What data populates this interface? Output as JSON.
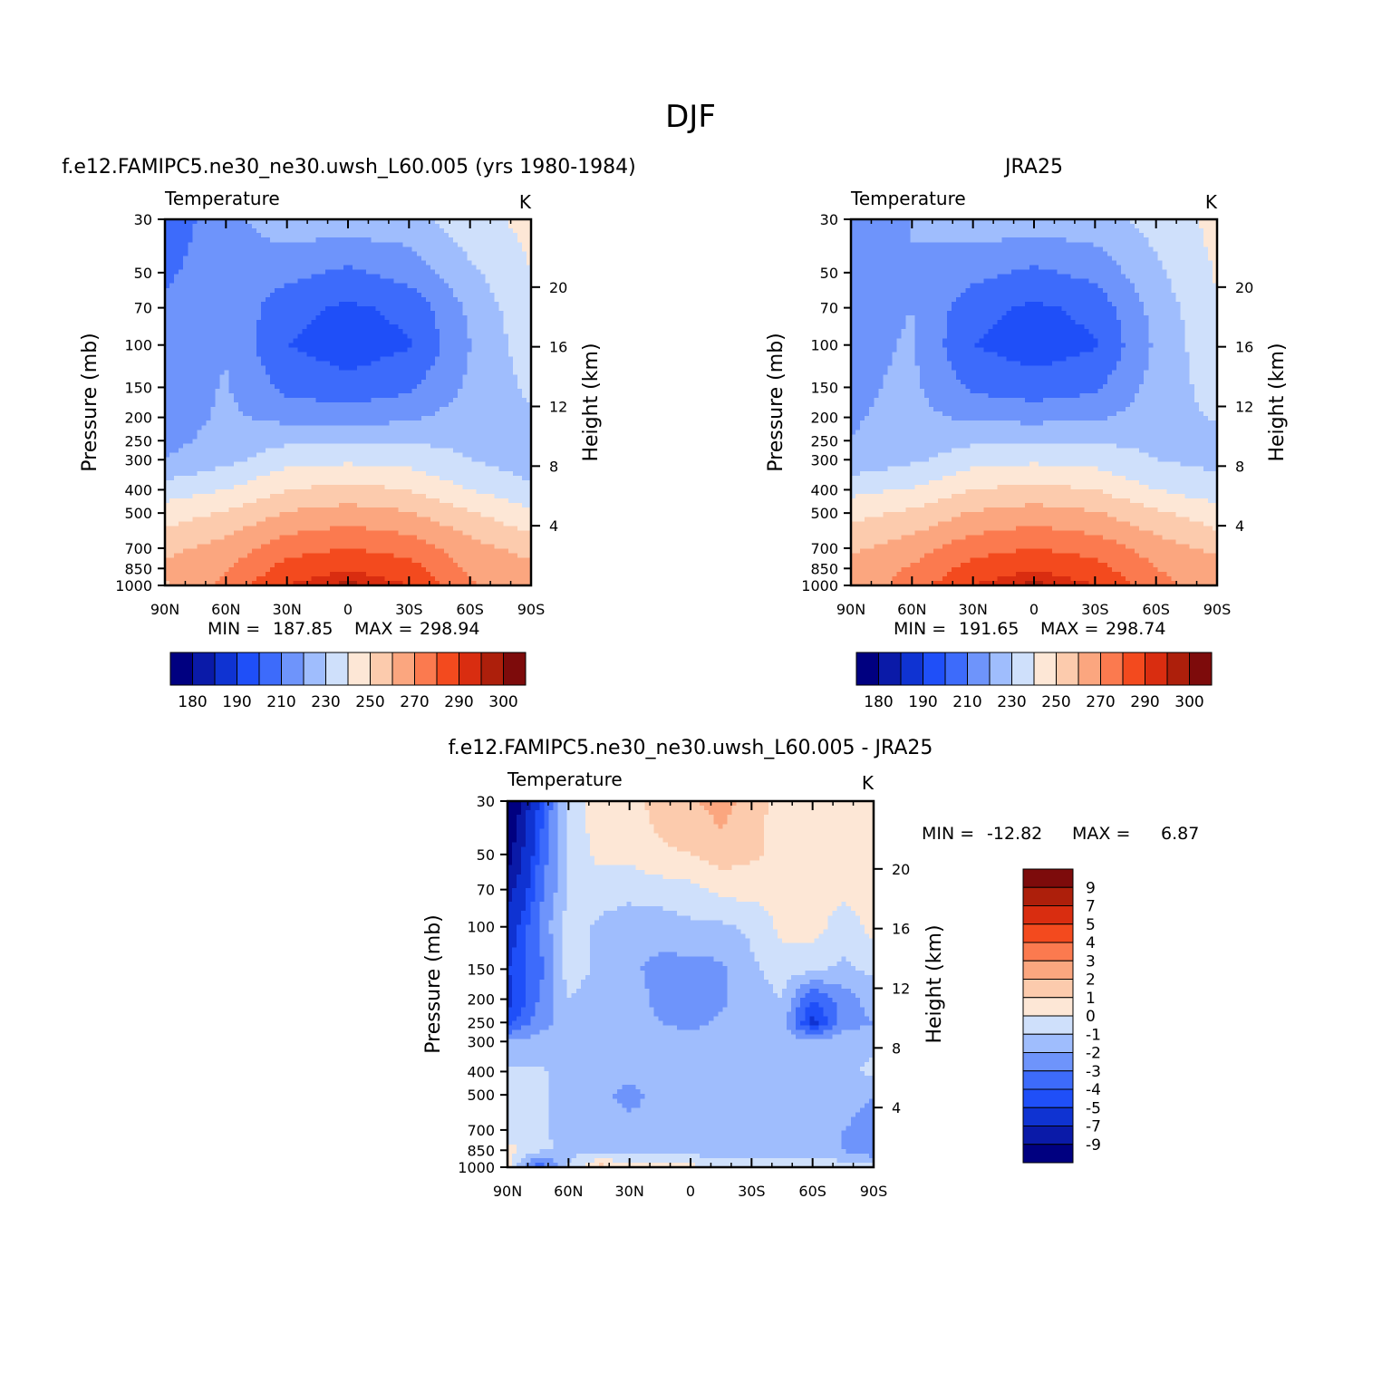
{
  "figure": {
    "title": "DJF"
  },
  "colors": {
    "abs_fill": [
      "#000080",
      "#0a1aa8",
      "#0f33d2",
      "#1f4ff8",
      "#3d6bfb",
      "#6e94fb",
      "#9fbdfd",
      "#cfe0fb",
      "#fde7d6",
      "#fccbad",
      "#fba67f",
      "#fb7a4f",
      "#f34a1e",
      "#d92d10",
      "#ad1f0b",
      "#7d0b0b"
    ],
    "diff_fill": [
      "#000080",
      "#0a1aa8",
      "#0f33d2",
      "#1f4ff8",
      "#3d6bfb",
      "#6e94fb",
      "#9fbdfd",
      "#cfe0fb",
      "#fde7d6",
      "#fccbad",
      "#fba67f",
      "#fb7a4f",
      "#f34a1e",
      "#d92d10",
      "#ad1f0b",
      "#7d0b0b"
    ]
  },
  "chart_data": [
    {
      "type": "heatmap",
      "title": "f.e12.FAMIPC5.ne30_ne30.uwsh_L60.005 (yrs 1980-1984)",
      "variable": "Temperature",
      "units": "K",
      "ylabel": "Pressure (mb)",
      "y2label": "Height (km)",
      "x_ticks": [
        "90N",
        "60N",
        "30N",
        "0",
        "30S",
        "60S",
        "90S"
      ],
      "y_ticks": [
        "30",
        "50",
        "70",
        "100",
        "150",
        "200",
        "250",
        "300",
        "400",
        "500",
        "700",
        "850",
        "1000"
      ],
      "y2_ticks": [
        "20",
        "16",
        "12",
        "8",
        "4"
      ],
      "min_label": "MIN =",
      "min": "187.85",
      "max_label": "MAX =",
      "max": "298.94",
      "colorbar_labels": [
        "180",
        "190",
        "210",
        "230",
        "250",
        "270",
        "290",
        "300"
      ],
      "contour_levels": [
        180,
        185,
        190,
        200,
        210,
        220,
        230,
        240,
        250,
        260,
        270,
        280,
        290,
        295,
        300
      ],
      "pressure_levels": [
        30,
        50,
        70,
        100,
        150,
        200,
        250,
        300,
        400,
        500,
        700,
        850,
        1000
      ],
      "latitudes": [
        90,
        60,
        30,
        0,
        -30,
        -60,
        -90
      ],
      "values": [
        [
          203,
          217,
          226,
          226,
          226,
          236,
          243
        ],
        [
          208,
          217,
          213,
          208,
          214,
          228,
          240
        ],
        [
          212,
          218,
          204,
          198,
          203,
          222,
          238
        ],
        [
          212,
          219,
          200,
          195,
          199,
          220,
          236
        ],
        [
          213,
          221,
          207,
          203,
          208,
          222,
          232
        ],
        [
          214,
          222,
          217,
          216,
          218,
          225,
          228
        ],
        [
          217,
          224,
          228,
          228,
          229,
          228,
          223
        ],
        [
          220,
          227,
          236,
          238,
          236,
          230,
          225
        ],
        [
          235,
          240,
          250,
          253,
          250,
          240,
          232
        ],
        [
          245,
          251,
          261,
          264,
          261,
          251,
          242
        ],
        [
          257,
          264,
          276,
          280,
          276,
          264,
          256
        ],
        [
          262,
          269,
          284,
          289,
          284,
          268,
          263
        ],
        [
          258,
          273,
          290,
          297,
          290,
          272,
          260
        ]
      ]
    },
    {
      "type": "heatmap",
      "title": "JRA25",
      "variable": "Temperature",
      "units": "K",
      "ylabel": "Pressure (mb)",
      "y2label": "Height (km)",
      "x_ticks": [
        "90N",
        "60N",
        "30N",
        "0",
        "30S",
        "60S",
        "90S"
      ],
      "y_ticks": [
        "30",
        "50",
        "70",
        "100",
        "150",
        "200",
        "250",
        "300",
        "400",
        "500",
        "700",
        "850",
        "1000"
      ],
      "y2_ticks": [
        "20",
        "16",
        "12",
        "8",
        "4"
      ],
      "min_label": "MIN =",
      "min": "191.65",
      "max_label": "MAX =",
      "max": "298.74",
      "colorbar_labels": [
        "180",
        "190",
        "210",
        "230",
        "250",
        "270",
        "290",
        "300"
      ],
      "contour_levels": [
        180,
        185,
        190,
        200,
        210,
        220,
        230,
        240,
        250,
        260,
        270,
        280,
        290,
        295,
        300
      ],
      "pressure_levels": [
        30,
        50,
        70,
        100,
        150,
        200,
        250,
        300,
        400,
        500,
        700,
        850,
        1000
      ],
      "latitudes": [
        90,
        60,
        30,
        0,
        -30,
        -60,
        -90
      ],
      "values": [
        [
          214,
          220,
          226,
          226,
          226,
          234,
          243
        ],
        [
          216,
          220,
          213,
          208,
          213,
          228,
          241
        ],
        [
          216,
          220,
          204,
          198,
          203,
          224,
          239
        ],
        [
          217,
          221,
          200,
          195,
          199,
          222,
          238
        ],
        [
          218,
          222,
          208,
          204,
          208,
          224,
          234
        ],
        [
          219,
          223,
          218,
          217,
          218,
          226,
          231
        ],
        [
          220,
          225,
          228,
          229,
          229,
          228,
          227
        ],
        [
          223,
          228,
          236,
          238,
          236,
          230,
          227
        ],
        [
          237,
          241,
          250,
          253,
          250,
          240,
          234
        ],
        [
          247,
          252,
          261,
          264,
          261,
          252,
          244
        ],
        [
          258,
          265,
          276,
          280,
          276,
          265,
          257
        ],
        [
          264,
          271,
          284,
          289,
          284,
          270,
          265
        ],
        [
          261,
          275,
          290,
          297,
          290,
          274,
          263
        ]
      ]
    },
    {
      "type": "heatmap",
      "title": "f.e12.FAMIPC5.ne30_ne30.uwsh_L60.005 - JRA25",
      "variable": "Temperature",
      "units": "K",
      "ylabel": "Pressure (mb)",
      "y2label": "Height (km)",
      "x_ticks": [
        "90N",
        "60N",
        "30N",
        "0",
        "30S",
        "60S",
        "90S"
      ],
      "y_ticks": [
        "30",
        "50",
        "70",
        "100",
        "150",
        "200",
        "250",
        "300",
        "400",
        "500",
        "700",
        "850",
        "1000"
      ],
      "y2_ticks": [
        "20",
        "16",
        "12",
        "8",
        "4"
      ],
      "min_label": "MIN =",
      "min": "-12.82",
      "max_label": "MAX =",
      "max": "6.87",
      "colorbar_labels": [
        "9",
        "7",
        "5",
        "4",
        "3",
        "2",
        "1",
        "0",
        "-1",
        "-2",
        "-3",
        "-4",
        "-5",
        "-7",
        "-9"
      ],
      "contour_levels": [
        -9,
        -7,
        -5,
        -4,
        -3,
        -2,
        -1,
        0,
        1,
        2,
        3,
        4,
        5,
        7,
        9
      ],
      "pressure_levels": [
        30,
        50,
        70,
        100,
        150,
        200,
        250,
        300,
        400,
        500,
        700,
        850,
        1000
      ],
      "latitudes": [
        90,
        75,
        60,
        45,
        30,
        15,
        0,
        -15,
        -30,
        -45,
        -60,
        -75,
        -90
      ],
      "values": [
        [
          -12,
          -5,
          -0.5,
          0.5,
          0.5,
          1.5,
          1.8,
          2.5,
          1.5,
          0.5,
          0.3,
          0.4,
          0.3
        ],
        [
          -10,
          -4,
          -0.7,
          0.3,
          0.3,
          0.8,
          1.0,
          1.5,
          1.2,
          0.6,
          0.3,
          0.4,
          0.3
        ],
        [
          -8,
          -3.5,
          -1,
          -0.5,
          -0.7,
          -0.5,
          -0.3,
          0.3,
          0.4,
          0.3,
          0.3,
          0.3,
          0.2
        ],
        [
          -6,
          -3,
          -0.5,
          -1.2,
          -1.5,
          -1.5,
          -1.2,
          -1.2,
          -0.8,
          0.3,
          0.4,
          -0.5,
          0.3
        ],
        [
          -5,
          -3.5,
          -0.5,
          -1.2,
          -1.8,
          -2.3,
          -2.4,
          -2.2,
          -1.2,
          -0.5,
          -0.8,
          -1.2,
          -0.8
        ],
        [
          -5.5,
          -3,
          -1,
          -1.5,
          -1.5,
          -2.3,
          -2.5,
          -2.2,
          -1.5,
          -1,
          -4,
          -2.5,
          -1.5
        ],
        [
          -4.5,
          -2.5,
          -1.5,
          -1.5,
          -1.5,
          -2,
          -2.3,
          -1.8,
          -1.3,
          -1.5,
          -5.5,
          -2.5,
          -2
        ],
        [
          -2,
          -1.5,
          -1.5,
          -1.5,
          -1.5,
          -1.5,
          -1.5,
          -1.5,
          -1.5,
          -1.5,
          -1.5,
          -1.5,
          -1.2
        ],
        [
          -0.8,
          -0.9,
          -1.2,
          -1.5,
          -1.5,
          -1.5,
          -1.4,
          -1.5,
          -1.5,
          -1.5,
          -1.5,
          -1.2,
          -0.8
        ],
        [
          -0.8,
          -0.9,
          -1.2,
          -1.5,
          -2.5,
          -1.5,
          -1.4,
          -1.5,
          -1.5,
          -1.5,
          -1.5,
          -1.5,
          -2
        ],
        [
          -0.8,
          -0.9,
          -1.2,
          -1.5,
          -1.5,
          -1.5,
          -1.5,
          -1.5,
          -1.5,
          -1.5,
          -1.5,
          -2,
          -2.5
        ],
        [
          0.5,
          -0.8,
          -1.2,
          -1.5,
          -1.5,
          -1.5,
          -1.5,
          -1.5,
          -1.5,
          -1.5,
          -1.5,
          -2,
          -2.8
        ],
        [
          0.3,
          -4,
          -1,
          1.5,
          0.3,
          0.5,
          0.3,
          -0.5,
          -0.5,
          -0.5,
          0,
          -0.5,
          -0.5
        ]
      ]
    }
  ]
}
